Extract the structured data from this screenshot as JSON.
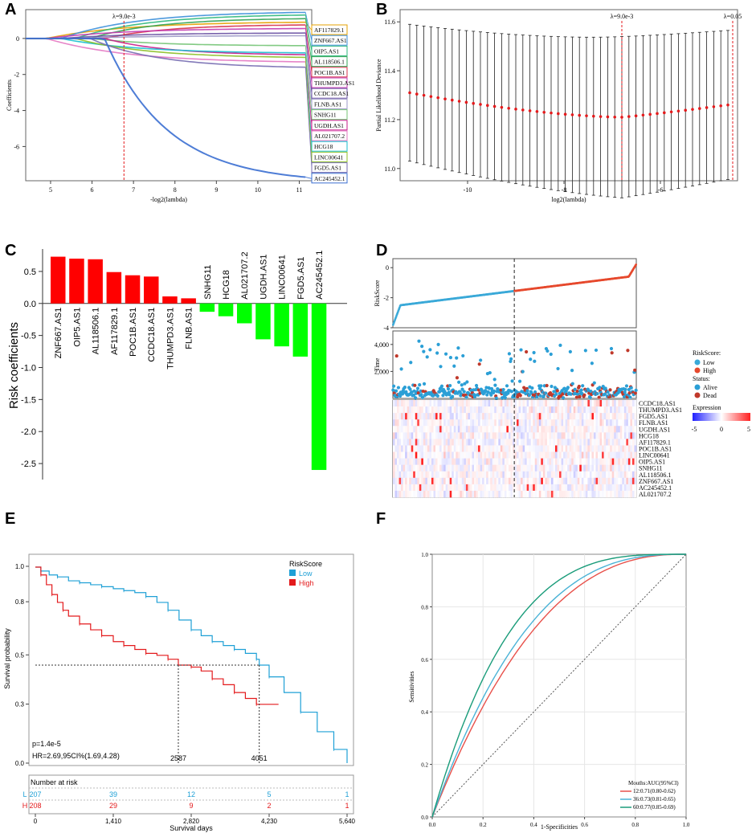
{
  "panel_labels": [
    "A",
    "B",
    "C",
    "D",
    "E",
    "F"
  ],
  "chart_data": [
    {
      "panel": "A",
      "type": "line",
      "title": "",
      "xlabel": "-log2(lambda)",
      "ylabel": "Coefficients",
      "xlim": [
        4.4,
        11.3
      ],
      "ylim": [
        -7.9,
        1.6
      ],
      "xticks": [
        "5",
        "6",
        "7",
        "8",
        "9",
        "10",
        "11"
      ],
      "yticks": [
        "0",
        "-2",
        "-4",
        "-6"
      ],
      "vline_x": 6.77,
      "vline_label": "λ=9.0e-3",
      "labels": [
        "AF117829.1",
        "ZNF667.AS1",
        "OIP5.AS1",
        "AL118506.1",
        "POC1B.AS1",
        "THUMPD3.AS1",
        "CCDC18.AS1",
        "FLNB.AS1",
        "SNHG11",
        "UGDH.AS1",
        "AL021707.2",
        "HCG18",
        "LINC00641",
        "FGD5.AS1",
        "AC245452.1"
      ],
      "label_colors": [
        "#e6a000",
        "#3b8fd9",
        "#2db87c",
        "#31a354",
        "#d6304b",
        "#c23bb0",
        "#6a51a3",
        "#9e9ac8",
        "#74c476",
        "#c51b8a",
        "#e377c2",
        "#17becf",
        "#8cbf26",
        "#756bb1",
        "#3b6fd1"
      ],
      "series": [
        {
          "name": "AF117829.1",
          "end": 0.9,
          "color": "#e6a000"
        },
        {
          "name": "ZNF667.AS1",
          "end": 1.45,
          "color": "#3b8fd9"
        },
        {
          "name": "OIP5.AS1",
          "end": 1.3,
          "color": "#2db87c"
        },
        {
          "name": "AL118506.1",
          "end": 1.1,
          "color": "#31a354"
        },
        {
          "name": "POC1B.AS1",
          "end": 0.75,
          "color": "#d6304b"
        },
        {
          "name": "THUMPD3.AS1",
          "end": 0.55,
          "color": "#c23bb0"
        },
        {
          "name": "CCDC18.AS1",
          "end": 0.3,
          "color": "#6a51a3"
        },
        {
          "name": "FLNB.AS1",
          "end": 0.15,
          "color": "#9e9ac8"
        },
        {
          "name": "SNHG11",
          "end": -0.4,
          "color": "#74c476"
        },
        {
          "name": "UGDH.AS1",
          "end": -0.9,
          "color": "#c51b8a"
        },
        {
          "name": "AL021707.2",
          "end": -1.3,
          "color": "#e377c2"
        },
        {
          "name": "HCG18",
          "end": -0.8,
          "color": "#17becf"
        },
        {
          "name": "LINC00641",
          "end": -1.05,
          "color": "#8cbf26"
        },
        {
          "name": "FGD5.AS1",
          "end": -1.6,
          "color": "#756bb1"
        },
        {
          "name": "AC245452.1",
          "end": -7.7,
          "color": "#3b6fd1"
        }
      ]
    },
    {
      "panel": "B",
      "type": "scatter",
      "title": "",
      "xlabel": "log2(lambda)",
      "ylabel": "Partial Likelihood Deviance",
      "xlim": [
        -11.4,
        -4.4
      ],
      "ylim": [
        10.95,
        11.65
      ],
      "xticks": [
        "-10",
        "-8",
        "-6"
      ],
      "yticks": [
        "11.6",
        "11.4",
        "11.2",
        "11.0"
      ],
      "vlines": [
        {
          "x": -6.8,
          "label": "λ=9.0e-3"
        },
        {
          "x": -4.5,
          "label": "λ=0.05"
        }
      ],
      "points": {
        "count": 46,
        "x_start": -11.2,
        "x_end": -4.6,
        "min_x": -6.8,
        "min_y": 11.21,
        "start_y": 11.31,
        "end_y": 11.26
      },
      "error_half_width_range": [
        0.28,
        0.33
      ]
    },
    {
      "panel": "C",
      "type": "bar",
      "title": "",
      "xlabel": "",
      "ylabel": "Risk coefficients",
      "ylim": [
        -2.75,
        0.85
      ],
      "yticks": [
        "0.5",
        "0.0",
        "-0.5",
        "-1.0",
        "-1.5",
        "-2.0",
        "-2.5"
      ],
      "categories": [
        "ZNF667.AS1",
        "OIP5.AS1",
        "AL118506.1",
        "AF117829.1",
        "POC1B.AS1",
        "CCDC18.AS1",
        "THUMPD3.AS1",
        "FLNB.AS1",
        "SNHG11",
        "HCG18",
        "AL021707.2",
        "UGDH.AS1",
        "LINC00641",
        "FGD5.AS1",
        "AC245452.1"
      ],
      "values": [
        0.73,
        0.7,
        0.69,
        0.49,
        0.44,
        0.42,
        0.11,
        0.08,
        -0.13,
        -0.2,
        -0.31,
        -0.56,
        -0.67,
        -0.83,
        -2.6
      ],
      "colors": {
        "positive": "#ff0000",
        "negative": "#00ff00"
      }
    },
    {
      "panel": "D",
      "type": "scatter",
      "title": "",
      "top_ylabel": "RiskScore",
      "top_yticks": [
        "0",
        "-2",
        "-4"
      ],
      "top_ylim": [
        -4,
        0.6
      ],
      "mid_ylabel": "Time",
      "mid_yticks": [
        "4,000",
        "2,000"
      ],
      "mid_ylim": [
        0,
        5000
      ],
      "legend": {
        "title": "RiskScore:",
        "items": [
          "Low",
          "High"
        ],
        "status_title": "Status:",
        "status_items": [
          "Alive",
          "Dead"
        ]
      },
      "heatmap_legend": {
        "title": "Expression",
        "ticks": [
          "-5",
          "0",
          "5"
        ]
      },
      "heatmap_genes": [
        "CCDC18.AS1",
        "THUMPD3.AS1",
        "FGD5.AS1",
        "FLNB.AS1",
        "UGDH.AS1",
        "HCG18",
        "AF117829.1",
        "POC1B.AS1",
        "LINC00641",
        "OIP5.AS1",
        "SNHG11",
        "AL118506.1",
        "ZNF667.AS1",
        "AC245452.1",
        "AL021707.2"
      ],
      "colors": {
        "low": "#3aa9d8",
        "high": "#e6492d",
        "alive": "#2b9fd6",
        "dead": "#c0392b"
      },
      "n_samples": 415,
      "cutoff_index": 207
    },
    {
      "panel": "E",
      "type": "line",
      "title": "",
      "xlabel": "Survival days",
      "ylabel": "Survival probability",
      "xlim": [
        0,
        5640
      ],
      "ylim": [
        0,
        1
      ],
      "xticks": [
        "0",
        "1,410",
        "2,820",
        "4,230",
        "5,640"
      ],
      "yticks": [
        "1.0",
        "0.8",
        "0.5",
        "0.3",
        "0.0"
      ],
      "legend_title": "RiskScore",
      "pvalue": "p=1.4e-5",
      "hr": "HR=2.69,95CI%(1.69,4.28)",
      "median_labels": [
        "2587",
        "4051"
      ],
      "series": [
        {
          "name": "Low",
          "color": "#1fa0d6",
          "x": [
            0,
            100,
            250,
            400,
            600,
            800,
            1000,
            1200,
            1410,
            1600,
            1800,
            2000,
            2200,
            2400,
            2600,
            2820,
            3000,
            3200,
            3400,
            3600,
            3800,
            4000,
            4051,
            4230,
            4500,
            4800,
            5100,
            5400,
            5640
          ],
          "y": [
            1.0,
            0.98,
            0.96,
            0.95,
            0.93,
            0.92,
            0.91,
            0.9,
            0.89,
            0.88,
            0.87,
            0.85,
            0.82,
            0.78,
            0.73,
            0.68,
            0.65,
            0.62,
            0.6,
            0.58,
            0.56,
            0.53,
            0.5,
            0.44,
            0.36,
            0.26,
            0.16,
            0.07,
            0.0
          ]
        },
        {
          "name": "High",
          "color": "#e31a1c",
          "x": [
            0,
            100,
            200,
            300,
            400,
            500,
            600,
            800,
            1000,
            1200,
            1410,
            1600,
            1800,
            2000,
            2200,
            2400,
            2587,
            2820,
            3000,
            3200,
            3400,
            3600,
            3800,
            4000,
            4100,
            4400
          ],
          "y": [
            1.0,
            0.96,
            0.91,
            0.86,
            0.82,
            0.78,
            0.75,
            0.71,
            0.68,
            0.65,
            0.62,
            0.6,
            0.58,
            0.56,
            0.55,
            0.53,
            0.5,
            0.49,
            0.47,
            0.43,
            0.4,
            0.36,
            0.33,
            0.3,
            0.3,
            0.3
          ]
        }
      ],
      "risk_table": {
        "title": "Number at risk",
        "rows": [
          {
            "label": "L",
            "values": [
              "207",
              "39",
              "12",
              "5",
              "1"
            ],
            "color": "#1fa0d6"
          },
          {
            "label": "H",
            "values": [
              "208",
              "29",
              "9",
              "2",
              "1"
            ],
            "color": "#e31a1c"
          }
        ]
      }
    },
    {
      "panel": "F",
      "type": "line",
      "title": "",
      "xlabel": "1-Specificities",
      "ylabel": "Sensitivities",
      "xlim": [
        0,
        1
      ],
      "ylim": [
        0,
        1
      ],
      "xticks": [
        "0.0",
        "0.2",
        "0.4",
        "0.6",
        "0.8",
        "1.0"
      ],
      "yticks": [
        "1.0",
        "0.8",
        "0.6",
        "0.4",
        "0.2",
        "0.0"
      ],
      "legend_title": "Mouths:AUC(95%CI)",
      "series": [
        {
          "name": "12:0.71(0.80-0.62)",
          "auc": 0.71,
          "color": "#e8504a"
        },
        {
          "name": "36:0.73(0.81-0.65)",
          "auc": 0.73,
          "color": "#4ab3d6"
        },
        {
          "name": "60:0.77(0.85-0.69)",
          "auc": 0.77,
          "color": "#1a9c7a"
        }
      ]
    }
  ]
}
